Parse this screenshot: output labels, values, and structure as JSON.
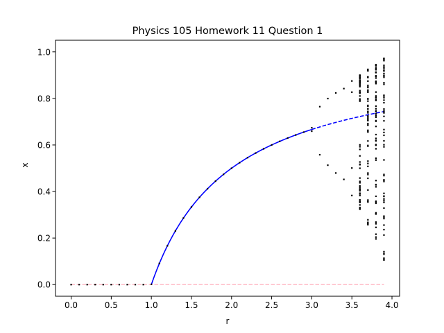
{
  "chart_data": {
    "type": "scatter",
    "title": "Physics 105 Homework 11 Question 1",
    "xlabel": "r",
    "ylabel": "x",
    "xlim": [
      -0.195,
      4.095
    ],
    "ylim": [
      -0.05,
      1.05
    ],
    "grid": false,
    "legend": "none",
    "x_ticks": [
      "0.0",
      "0.5",
      "1.0",
      "1.5",
      "2.0",
      "2.5",
      "3.0",
      "3.5",
      "4.0"
    ],
    "y_ticks": [
      "0.0",
      "0.2",
      "0.4",
      "0.6",
      "0.8",
      "1.0"
    ],
    "colors": {
      "stable_fixed_point": "#0000ff",
      "unstable_fixed_point": "#0000ff",
      "zero_branch": "#ffc0cb",
      "orbit_points": "#000000"
    },
    "lines": [
      {
        "role": "stable_fixed_point",
        "formula": "x = 1 - 1/r",
        "x_range": [
          1.0,
          3.0
        ],
        "style": "solid"
      },
      {
        "role": "unstable_fixed_point",
        "formula": "x = 1 - 1/r",
        "x_range": [
          3.0,
          3.9
        ],
        "style": "dashed"
      },
      {
        "role": "zero_branch",
        "formula": "x = 0",
        "x_range": [
          0.0,
          3.9
        ],
        "style": "dashed"
      }
    ],
    "orbit_points": {
      "map": "x_next = r * x * (1 - x)",
      "r_values": [
        0.0,
        0.1,
        0.2,
        0.3,
        0.4,
        0.5,
        0.6,
        0.7,
        0.8,
        0.9,
        1.0,
        1.1,
        1.2,
        1.3,
        1.4,
        1.5,
        1.6,
        1.7,
        1.8,
        1.9,
        2.0,
        2.1,
        2.2,
        2.3,
        2.4,
        2.5,
        2.6,
        2.7,
        2.8,
        2.9,
        3.0,
        3.1,
        3.2,
        3.3,
        3.4,
        3.5,
        3.6,
        3.7,
        3.8,
        3.9
      ],
      "points_per_r": 60,
      "x0": 0.5
    }
  }
}
